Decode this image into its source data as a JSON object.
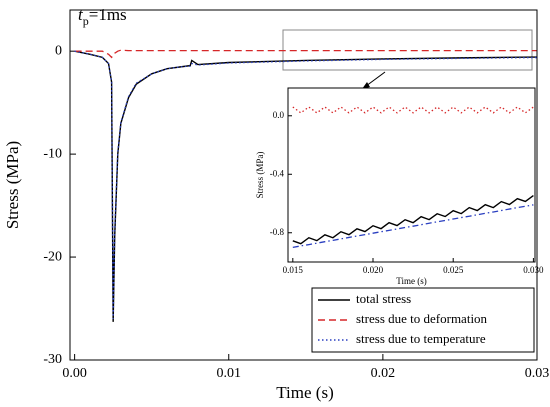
{
  "chart_data": [
    {
      "type": "line",
      "annotation": {
        "symbol": "t",
        "subscript": "p",
        "text": "=1ms"
      },
      "xlabel": "Time (s)",
      "ylabel": "Stress (MPa)",
      "x": [
        0,
        0.001,
        0.0018,
        0.0022,
        0.0024,
        0.0025,
        0.0026,
        0.0028,
        0.003,
        0.0035,
        0.004,
        0.005,
        0.006,
        0.007,
        0.0075,
        0.0076,
        0.008,
        0.01,
        0.015,
        0.02,
        0.025,
        0.03
      ],
      "series": [
        {
          "name": "total stress",
          "color": "#000000",
          "style": "solid",
          "values": [
            0,
            -0.3,
            -0.6,
            -1.2,
            -3,
            -26.3,
            -18,
            -10,
            -7,
            -4.5,
            -3.2,
            -2.2,
            -1.7,
            -1.5,
            -1.4,
            -0.9,
            -1.3,
            -1.1,
            -0.9,
            -0.75,
            -0.65,
            -0.57
          ]
        },
        {
          "name": "stress due to deformation",
          "color": "#d62728",
          "style": "dashed",
          "values": [
            0,
            0,
            0,
            -0.3,
            -0.6,
            -0.4,
            -0.2,
            0,
            0.1,
            0.05,
            0.05,
            0.05,
            0.05,
            0.05,
            0.05,
            0.05,
            0.05,
            0.05,
            0.05,
            0.05,
            0.05,
            0.05
          ]
        },
        {
          "name": "stress due to temperature",
          "color": "#2a3fc0",
          "style": "dotted",
          "values": [
            0,
            -0.3,
            -0.6,
            -1.2,
            -3,
            -26,
            -17.5,
            -9.8,
            -6.9,
            -4.4,
            -3.1,
            -2.2,
            -1.7,
            -1.5,
            -1.45,
            -1.2,
            -1.35,
            -1.15,
            -0.95,
            -0.8,
            -0.7,
            -0.62
          ]
        }
      ],
      "xlim": [
        -0.0003,
        0.03
      ],
      "xticks": [
        {
          "value": 0,
          "label": "0.00"
        },
        0.01,
        0.02,
        0.03
      ],
      "ylim": [
        -30,
        4
      ],
      "yticks": [
        0,
        -10,
        -20,
        -30
      ],
      "legend": "lower right"
    },
    {
      "type": "line",
      "xlabel": "Time (s)",
      "ylabel": "Stress (MPa)",
      "x": [
        0.015,
        0.0155,
        0.016,
        0.0165,
        0.017,
        0.0175,
        0.018,
        0.0185,
        0.019,
        0.0195,
        0.02,
        0.0205,
        0.021,
        0.0215,
        0.022,
        0.0225,
        0.023,
        0.0235,
        0.024,
        0.0245,
        0.025,
        0.0255,
        0.026,
        0.0265,
        0.027,
        0.0275,
        0.028,
        0.0285,
        0.029,
        0.0295,
        0.03
      ],
      "series": [
        {
          "color": "#000000",
          "style": "solid",
          "values": [
            -0.855,
            -0.875,
            -0.834,
            -0.854,
            -0.814,
            -0.834,
            -0.793,
            -0.813,
            -0.773,
            -0.792,
            -0.752,
            -0.772,
            -0.731,
            -0.751,
            -0.711,
            -0.731,
            -0.69,
            -0.71,
            -0.67,
            -0.689,
            -0.649,
            -0.669,
            -0.628,
            -0.648,
            -0.608,
            -0.628,
            -0.587,
            -0.607,
            -0.567,
            -0.586,
            -0.546
          ]
        },
        {
          "color": "#d62728",
          "style": "dotted",
          "values": [
            0.06,
            0.02,
            0.06,
            0.02,
            0.06,
            0.02,
            0.06,
            0.02,
            0.06,
            0.02,
            0.06,
            0.02,
            0.06,
            0.02,
            0.06,
            0.02,
            0.06,
            0.02,
            0.06,
            0.02,
            0.06,
            0.02,
            0.06,
            0.02,
            0.06,
            0.02,
            0.06,
            0.02,
            0.06,
            0.02,
            0.06
          ]
        },
        {
          "color": "#2a3fc0",
          "style": "dashdot",
          "values": [
            -0.9,
            -0.89,
            -0.881,
            -0.871,
            -0.861,
            -0.852,
            -0.842,
            -0.832,
            -0.822,
            -0.813,
            -0.803,
            -0.793,
            -0.784,
            -0.774,
            -0.764,
            -0.755,
            -0.745,
            -0.735,
            -0.725,
            -0.716,
            -0.706,
            -0.696,
            -0.687,
            -0.677,
            -0.667,
            -0.658,
            -0.648,
            -0.638,
            -0.628,
            -0.619,
            -0.609
          ]
        }
      ],
      "xlim": [
        0.0147,
        0.0301
      ],
      "xticks": [
        0.015,
        {
          "value": 0.02,
          "label": "0.020"
        },
        0.025,
        {
          "value": 0.03,
          "label": "0.030"
        }
      ],
      "ylim": [
        -1.0,
        0.19
      ],
      "yticks": [
        {
          "value": 0,
          "label": "0.0"
        },
        -0.4,
        -0.8
      ]
    }
  ]
}
